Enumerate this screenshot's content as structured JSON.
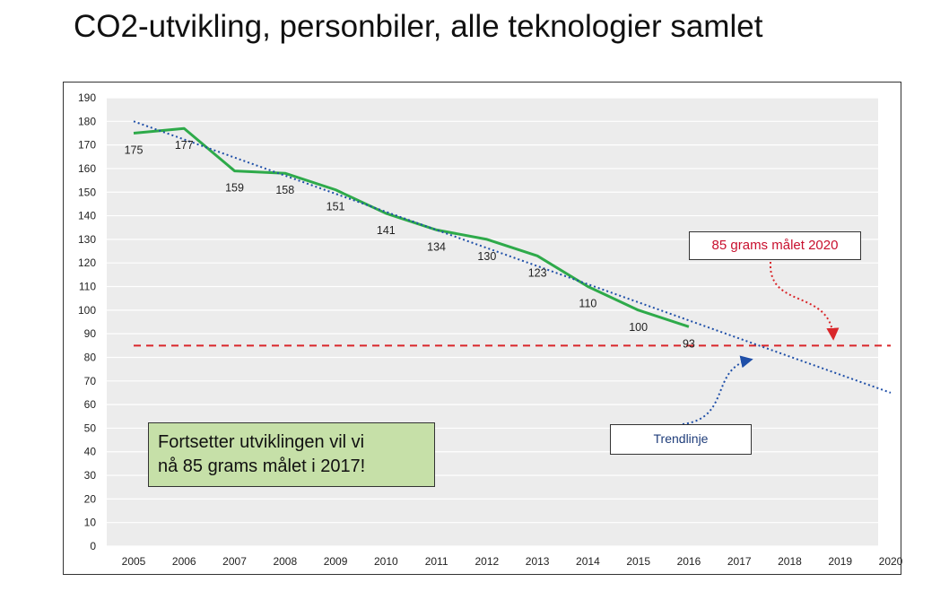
{
  "slide": {
    "title": "CO2-utvikling, personbiler, alle teknologier samlet"
  },
  "callouts": {
    "goal": "85 grams målet 2020",
    "trend": "Trendlinje",
    "note_line1": "Fortsetter utviklingen vil vi",
    "note_line2": "nå 85 grams målet i 2017!"
  },
  "colors": {
    "actual": "#2eaa4a",
    "trend": "#1f4fa8",
    "target": "#d9262a",
    "grid": "#ffffff",
    "plot_bg": "#ececec"
  },
  "chart_data": {
    "type": "line",
    "x": [
      2005,
      2006,
      2007,
      2008,
      2009,
      2010,
      2011,
      2012,
      2013,
      2014,
      2015,
      2016
    ],
    "x_ticks": [
      2005,
      2006,
      2007,
      2008,
      2009,
      2010,
      2011,
      2012,
      2013,
      2014,
      2015,
      2016,
      2017,
      2018,
      2019,
      2020
    ],
    "y_ticks": [
      0,
      10,
      20,
      30,
      40,
      50,
      60,
      70,
      80,
      90,
      100,
      110,
      120,
      130,
      140,
      150,
      160,
      170,
      180,
      190
    ],
    "series": [
      {
        "values": [
          175,
          177,
          159,
          158,
          151,
          141,
          134,
          130,
          123,
          110,
          100,
          93
        ],
        "data_labels": [
          "175",
          "177",
          "159",
          "158",
          "151",
          "141",
          "134",
          "130",
          "123",
          "110",
          "100",
          "93"
        ]
      }
    ],
    "trendline": {
      "x": [
        2005,
        2020
      ],
      "y": [
        180,
        65
      ],
      "style": "dotted"
    },
    "target_line": {
      "y": 85,
      "x": [
        2005,
        2020
      ],
      "style": "dashed"
    },
    "xlim": [
      2005,
      2020
    ],
    "ylim": [
      0,
      190
    ],
    "grid": true,
    "legend": "none"
  }
}
